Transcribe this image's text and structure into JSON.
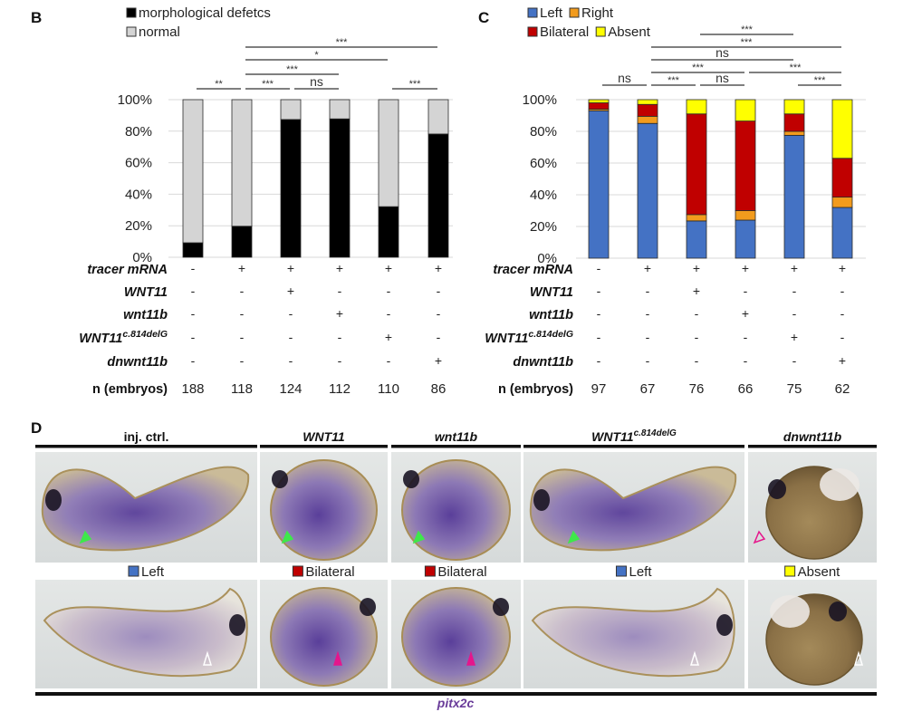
{
  "chart_data": [
    {
      "panel": "B",
      "type": "bar",
      "stacked": true,
      "title": "",
      "xlabel": "",
      "ylabel": "",
      "ylim": [
        0,
        100
      ],
      "yticks": [
        "0%",
        "20%",
        "40%",
        "60%",
        "80%",
        "100%"
      ],
      "grid": true,
      "legend_position": "top-left",
      "categories": [
        "1",
        "2",
        "3",
        "4",
        "5",
        "6"
      ],
      "series": [
        {
          "name": "morphological defetcs",
          "color": "#000000",
          "values": [
            9.2,
            19.7,
            87.4,
            87.8,
            32.1,
            78.2
          ]
        },
        {
          "name": "normal",
          "color": "#d4d4d4",
          "values": [
            90.8,
            80.3,
            12.6,
            12.2,
            67.9,
            21.8
          ]
        }
      ],
      "condition_rows": [
        {
          "label": "tracer mRNA",
          "italic": true,
          "sup": "",
          "values": [
            "-",
            "+",
            "+",
            "+",
            "+",
            "+"
          ]
        },
        {
          "label": "WNT11",
          "italic": true,
          "sup": "",
          "values": [
            "-",
            "-",
            "+",
            "-",
            "-",
            "-"
          ]
        },
        {
          "label": "wnt11b",
          "italic": true,
          "sup": "",
          "values": [
            "-",
            "-",
            "-",
            "+",
            "-",
            "-"
          ]
        },
        {
          "label": "WNT11",
          "italic": true,
          "sup": "c.814delG",
          "values": [
            "-",
            "-",
            "-",
            "-",
            "+",
            "-"
          ]
        },
        {
          "label": "dnwnt11b",
          "italic": true,
          "sup": "",
          "values": [
            "-",
            "-",
            "-",
            "-",
            "-",
            "+"
          ]
        }
      ],
      "n_row": {
        "label": "n (embryos)",
        "values": [
          "188",
          "118",
          "124",
          "112",
          "110",
          "86"
        ]
      },
      "significance": [
        {
          "from": 2,
          "to": 6,
          "level": 0,
          "label": "***"
        },
        {
          "from": 2,
          "to": 5,
          "level": 1,
          "label": "*"
        },
        {
          "from": 2,
          "to": 4,
          "level": 2,
          "label": "***"
        },
        {
          "from": 1,
          "to": 2,
          "level": 3,
          "label": "**"
        },
        {
          "from": 2,
          "to": 3,
          "level": 3,
          "label": "***"
        },
        {
          "from": 3,
          "to": 4,
          "level": 3,
          "label": "ns"
        },
        {
          "from": 5,
          "to": 6,
          "level": 3,
          "label": "***"
        }
      ]
    },
    {
      "panel": "C",
      "type": "bar",
      "stacked": true,
      "title": "",
      "xlabel": "",
      "ylabel": "",
      "ylim": [
        0,
        100
      ],
      "yticks": [
        "0%",
        "20%",
        "40%",
        "60%",
        "80%",
        "100%"
      ],
      "grid": true,
      "legend_position": "top-left",
      "categories": [
        "1",
        "2",
        "3",
        "4",
        "5",
        "6"
      ],
      "series": [
        {
          "name": "Left",
          "color": "#4472c4",
          "values": [
            93.0,
            85.0,
            23.5,
            24.0,
            77.5,
            32.0
          ]
        },
        {
          "name": "Right",
          "color": "#f29b1d",
          "values": [
            1.0,
            4.5,
            4.0,
            6.0,
            2.5,
            6.5
          ]
        },
        {
          "name": "Bilateral",
          "color": "#c00000",
          "values": [
            4.0,
            7.5,
            63.5,
            56.5,
            11.0,
            24.5
          ]
        },
        {
          "name": "Absent",
          "color": "#ffff00",
          "values": [
            2.0,
            3.0,
            9.0,
            13.5,
            9.0,
            37.0
          ]
        }
      ],
      "condition_rows": [
        {
          "label": "tracer mRNA",
          "italic": true,
          "sup": "",
          "values": [
            "-",
            "+",
            "+",
            "+",
            "+",
            "+"
          ]
        },
        {
          "label": "WNT11",
          "italic": true,
          "sup": "",
          "values": [
            "-",
            "-",
            "+",
            "-",
            "-",
            "-"
          ]
        },
        {
          "label": "wnt11b",
          "italic": true,
          "sup": "",
          "values": [
            "-",
            "-",
            "-",
            "+",
            "-",
            "-"
          ]
        },
        {
          "label": "WNT11",
          "italic": true,
          "sup": "c.814delG",
          "values": [
            "-",
            "-",
            "-",
            "-",
            "+",
            "-"
          ]
        },
        {
          "label": "dnwnt11b",
          "italic": true,
          "sup": "",
          "values": [
            "-",
            "-",
            "-",
            "-",
            "-",
            "+"
          ]
        }
      ],
      "n_row": {
        "label": "n (embryos)",
        "values": [
          "97",
          "67",
          "76",
          "66",
          "75",
          "62"
        ]
      },
      "significance": [
        {
          "from": 3,
          "to": 5,
          "level": 0,
          "label": "***"
        },
        {
          "from": 2,
          "to": 6,
          "level": 1,
          "label": "***"
        },
        {
          "from": 2,
          "to": 5,
          "level": 2,
          "label": "ns"
        },
        {
          "from": 2,
          "to": 4,
          "level": 3,
          "label": "***"
        },
        {
          "from": 4,
          "to": 6,
          "level": 3,
          "label": "***"
        },
        {
          "from": 1,
          "to": 2,
          "level": 4,
          "label": "ns"
        },
        {
          "from": 2,
          "to": 3,
          "level": 4,
          "label": "***"
        },
        {
          "from": 3,
          "to": 4,
          "level": 4,
          "label": "ns"
        },
        {
          "from": 5,
          "to": 6,
          "level": 4,
          "label": "***"
        }
      ]
    }
  ],
  "panel_d": {
    "letter": "D",
    "columns": [
      {
        "header": "inj. ctrl.",
        "italic": false,
        "sup": "",
        "classification": "Left",
        "class_color": "#4472c4",
        "top_arrow": "filled-green",
        "bottom_arrow": "open-white"
      },
      {
        "header": "WNT11",
        "italic": true,
        "sup": "",
        "classification": "Bilateral",
        "class_color": "#c00000",
        "top_arrow": "filled-green",
        "bottom_arrow": "filled-magenta"
      },
      {
        "header": "wnt11b",
        "italic": true,
        "sup": "",
        "classification": "Bilateral",
        "class_color": "#c00000",
        "top_arrow": "filled-green",
        "bottom_arrow": "filled-magenta"
      },
      {
        "header": "WNT11",
        "italic": true,
        "sup": "c.814delG",
        "classification": "Left",
        "class_color": "#4472c4",
        "top_arrow": "filled-green",
        "bottom_arrow": "open-white"
      },
      {
        "header": "dnwnt11b",
        "italic": true,
        "sup": "",
        "classification": "Absent",
        "class_color": "#ffff00",
        "top_arrow": "open-magenta",
        "bottom_arrow": "open-white"
      }
    ],
    "footer_label": "pitx2c"
  }
}
